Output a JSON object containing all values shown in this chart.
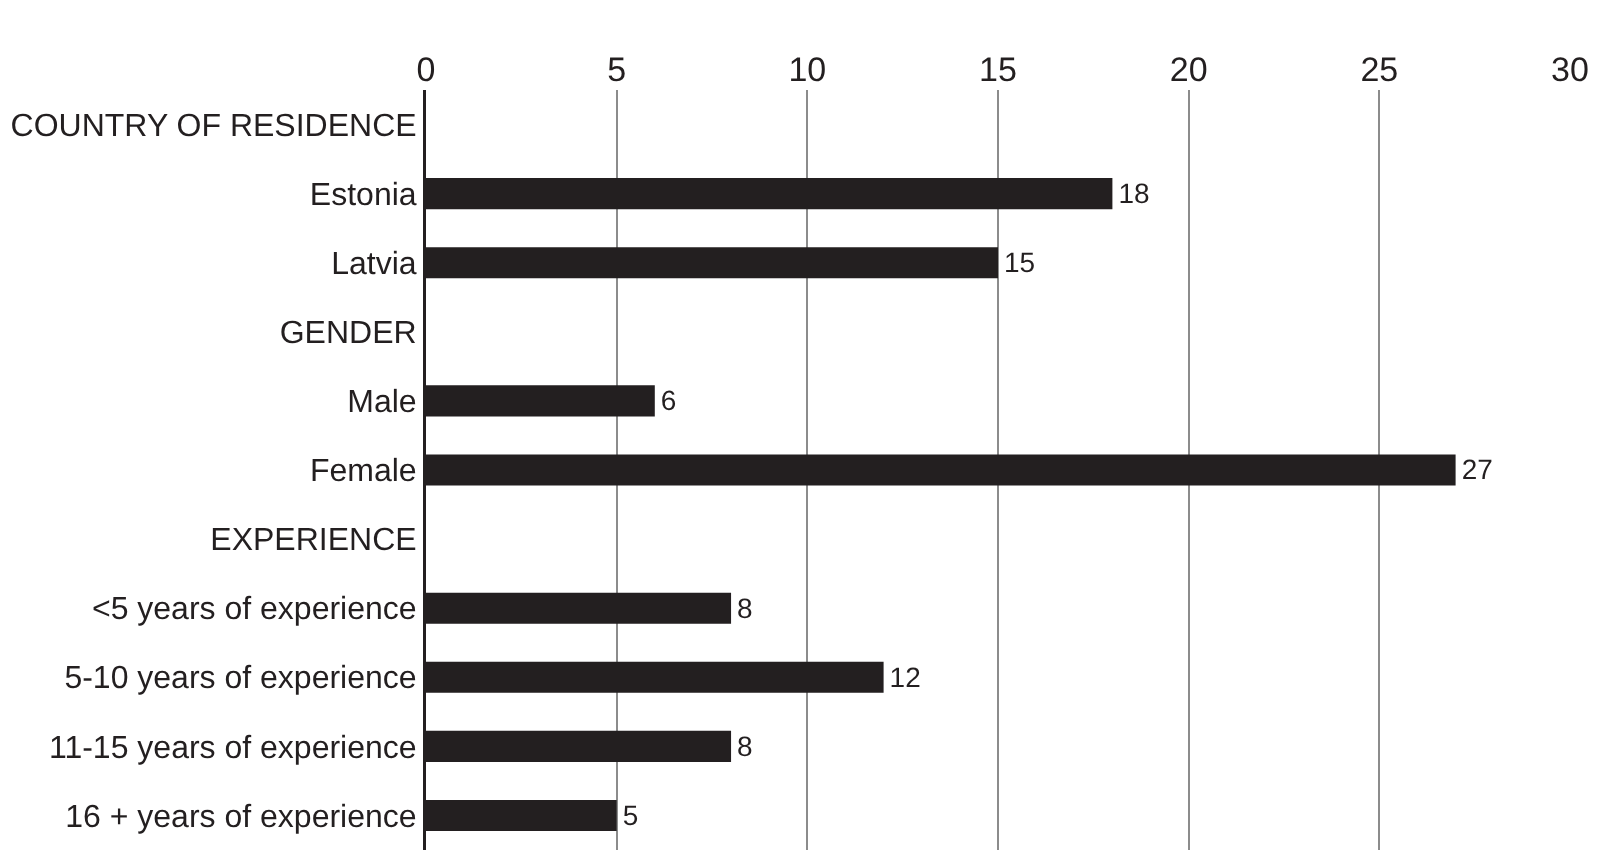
{
  "chart_data": {
    "type": "bar",
    "orientation": "horizontal",
    "categories": [
      "COUNTRY OF RESIDENCE",
      "Estonia",
      "Latvia",
      "GENDER",
      "Male",
      "Female",
      "EXPERIENCE",
      "<5 years of experience",
      "5-10 years of experience",
      "11-15 years of experience",
      "16 + years of experience"
    ],
    "values": [
      null,
      18,
      15,
      null,
      6,
      27,
      null,
      8,
      12,
      8,
      5
    ],
    "color": "#231f20",
    "xlim": [
      0,
      30
    ],
    "xticks": [
      0,
      5,
      10,
      15,
      20,
      25,
      30
    ],
    "grid": "x",
    "data_labels": true,
    "legend": false
  }
}
